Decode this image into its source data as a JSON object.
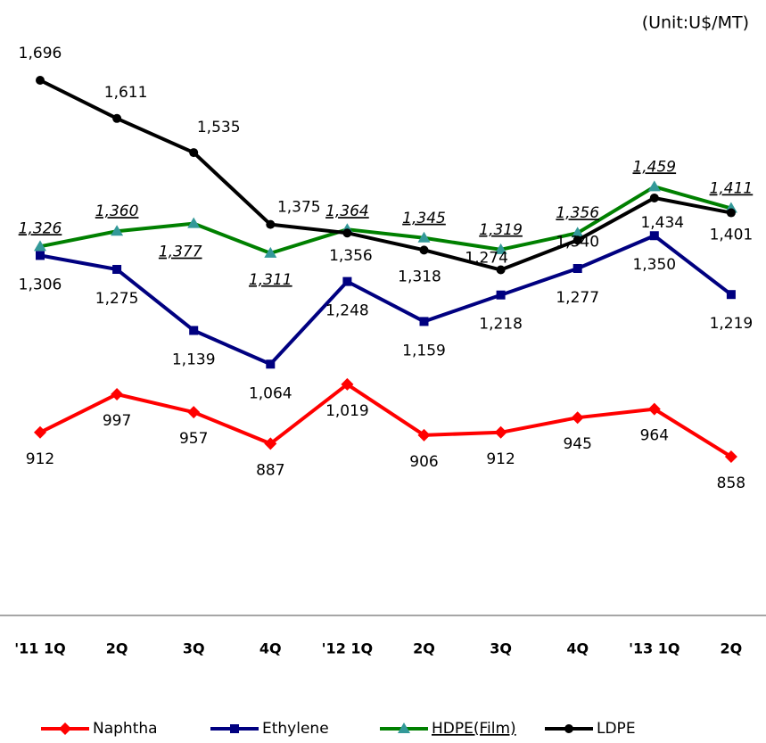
{
  "chart_data": {
    "type": "line",
    "subtitle": "(Unit:U$/MT)",
    "categories": [
      "'11 1Q",
      "2Q",
      "3Q",
      "4Q",
      "'12 1Q",
      "2Q",
      "3Q",
      "4Q",
      "'13 1Q",
      "2Q"
    ],
    "series": [
      {
        "name": "Naphtha",
        "color": "#ff0000",
        "marker": "diamond",
        "values": [
          912,
          997,
          957,
          887,
          1019,
          906,
          912,
          945,
          964,
          858
        ],
        "value_labels": [
          "912",
          "997",
          "957",
          "887",
          "1,019",
          "906",
          "912",
          "945",
          "964",
          "858"
        ]
      },
      {
        "name": "Ethylene",
        "color": "#000080",
        "marker": "square",
        "values": [
          1306,
          1275,
          1139,
          1064,
          1248,
          1159,
          1218,
          1277,
          1350,
          1219
        ],
        "value_labels": [
          "1,306",
          "1,275",
          "1,139",
          "1,064",
          "1,248",
          "1,159",
          "1,218",
          "1,277",
          "1,350",
          "1,219"
        ]
      },
      {
        "name": "HDPE(Film)",
        "color": "#008000",
        "marker": "triangle",
        "values": [
          1326,
          1360,
          1377,
          1311,
          1364,
          1345,
          1319,
          1356,
          1459,
          1411
        ],
        "value_labels": [
          "1,326",
          "1,360",
          "1,377",
          "1,311",
          "1,364",
          "1,345",
          "1,319",
          "1,356",
          "1,459",
          "1,411"
        ]
      },
      {
        "name": "LDPE",
        "color": "#000000",
        "marker": "circle",
        "values": [
          1696,
          1611,
          1535,
          1375,
          1356,
          1318,
          1274,
          1340,
          1434,
          1401
        ],
        "value_labels": [
          "1,696",
          "1,611",
          "1,535",
          "1,375",
          "1,356",
          "1,318",
          "1,274",
          "1,340",
          "1,434",
          "1,401"
        ]
      }
    ],
    "legend": "bottom"
  }
}
